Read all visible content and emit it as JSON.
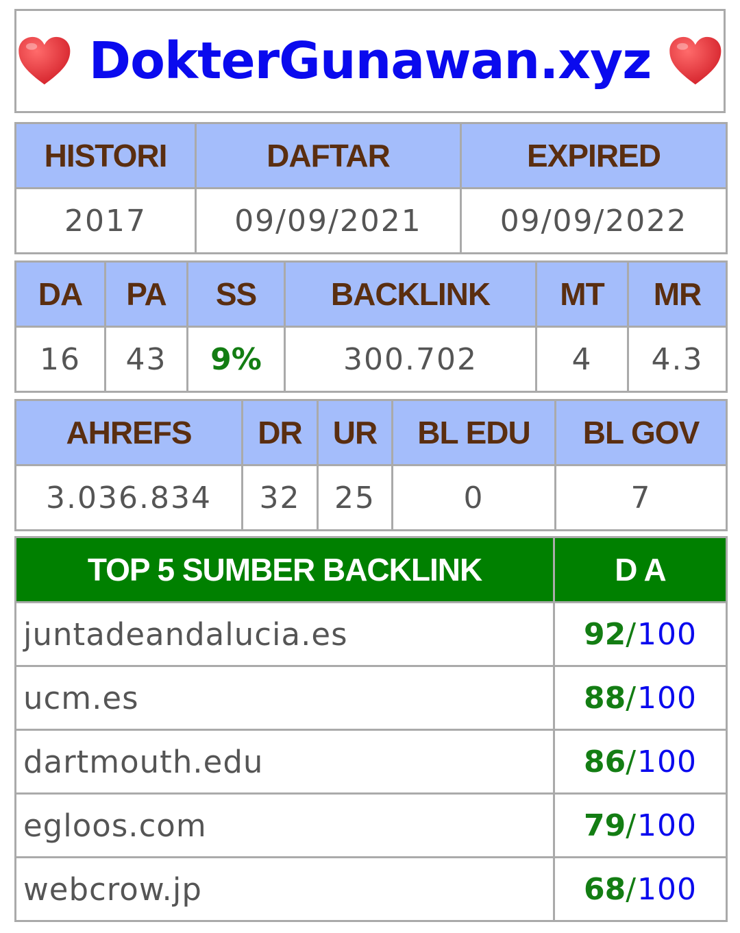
{
  "header": {
    "title": "DokterGunawan.xyz",
    "left_icon": "heart-icon",
    "right_icon": "heart-icon",
    "title_color": "#0a0aee",
    "heart_color": "#e0343a"
  },
  "dates_table": {
    "headers": [
      "HISTORI",
      "DAFTAR",
      "EXPIRED"
    ],
    "values": [
      "2017",
      "09/09/2021",
      "09/09/2022"
    ]
  },
  "metrics_table": {
    "headers": [
      "DA",
      "PA",
      "SS",
      "BACKLINK",
      "MT",
      "MR"
    ],
    "values": [
      "16",
      "43",
      "9%",
      "300.702",
      "4",
      "4.3"
    ]
  },
  "ahrefs_table": {
    "headers": [
      "AHREFS",
      "DR",
      "UR",
      "BL EDU",
      "BL GOV"
    ],
    "values": [
      "3.036.834",
      "32",
      "25",
      "0",
      "7"
    ]
  },
  "top_backlinks": {
    "header_source": "TOP 5 SUMBER BACKLINK",
    "header_da": "D A",
    "separator": "/",
    "max": "100",
    "rows": [
      {
        "domain": "juntadeandalucia.es",
        "da": "92"
      },
      {
        "domain": "ucm.es",
        "da": "88"
      },
      {
        "domain": "dartmouth.edu",
        "da": "86"
      },
      {
        "domain": "egloos.com",
        "da": "79"
      },
      {
        "domain": "webcrow.jp",
        "da": "68"
      }
    ]
  },
  "colors": {
    "header_bg": "#a4bdfb",
    "header_text": "#5a2e10",
    "top_header_bg": "#008000",
    "score_green": "#137d13",
    "max_blue": "#0a0aee",
    "border": "#aaaaaa"
  }
}
